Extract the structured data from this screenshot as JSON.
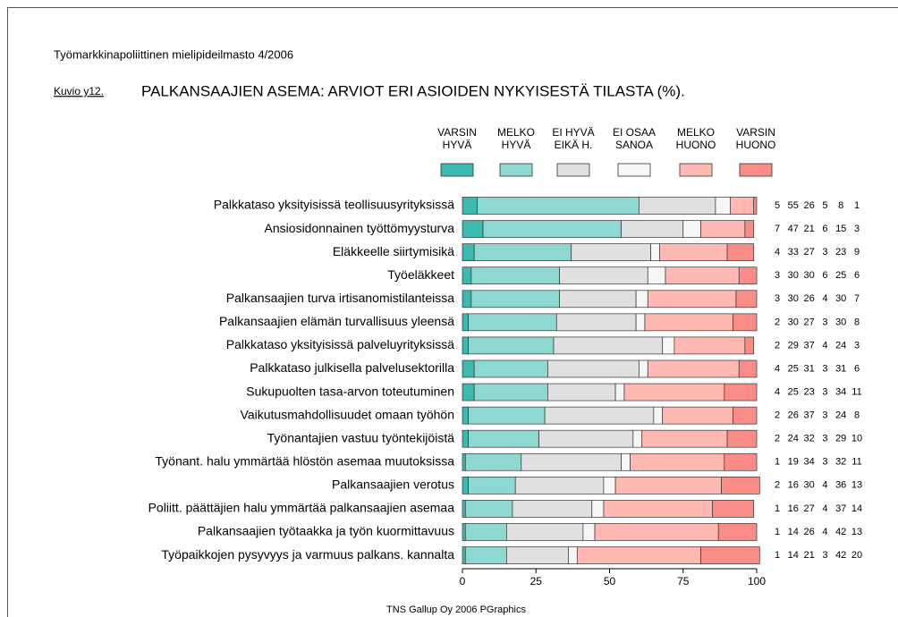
{
  "chart_data": {
    "type": "stacked_barh",
    "header": "Työmarkkinapoliittinen mielipideilmasto 4/2006",
    "figure_label": "Kuvio y12.",
    "title": "PALKANSAAJIEN ASEMA: ARVIOT ERI ASIOIDEN NYKYISESTÄ TILASTA (%).",
    "source": "TNS Gallup Oy  2006  PGraphics",
    "categories": [
      "Palkkataso yksityisissä teollisuusyrityksissä",
      "Ansiosidonnainen työttömyysturva",
      "Eläkkeelle siirtymisikä",
      "Työeläkkeet",
      "Palkansaajien turva irtisanomistilanteissa",
      "Palkansaajien elämän turvallisuus yleensä",
      "Palkkataso yksityisissä palveluyrityksissä",
      "Palkkataso julkisella palvelusektorilla",
      "Sukupuolten tasa-arvon toteutuminen",
      "Vaikutusmahdollisuudet omaan työhön",
      "Työnantajien vastuu työntekijöistä",
      "Työnant. halu ymmärtää hlöstön asemaa muutoksissa",
      "Palkansaajien verotus",
      "Poliitt. päättäjien halu ymmärtää palkansaajien asemaa",
      "Palkansaajien työtaakka ja työn kuormittavuus",
      "Työpaikkojen pysyvyys ja varmuus palkans. kannalta"
    ],
    "series": [
      {
        "name": "VARSIN\nHYVÄ",
        "color": "#3dbab0",
        "values": [
          5,
          7,
          4,
          3,
          3,
          2,
          2,
          4,
          4,
          2,
          2,
          1,
          2,
          1,
          1,
          1
        ]
      },
      {
        "name": "MELKO\nHYVÄ",
        "color": "#8ed8d2",
        "values": [
          55,
          47,
          33,
          30,
          30,
          30,
          29,
          25,
          25,
          26,
          24,
          19,
          16,
          16,
          14,
          14
        ]
      },
      {
        "name": "EI HYVÄ\nEIKÄ H.",
        "color": "#e0e0e0",
        "values": [
          26,
          21,
          27,
          30,
          26,
          27,
          37,
          31,
          23,
          37,
          32,
          34,
          30,
          27,
          26,
          21
        ]
      },
      {
        "name": "EI OSAA\nSANOA",
        "color": "#f6f6f6",
        "values": [
          5,
          6,
          3,
          6,
          4,
          3,
          4,
          3,
          3,
          3,
          3,
          3,
          4,
          4,
          4,
          3
        ]
      },
      {
        "name": "MELKO\nHUONO",
        "color": "#ffb9b2",
        "values": [
          8,
          15,
          23,
          25,
          30,
          30,
          24,
          31,
          34,
          24,
          29,
          32,
          36,
          37,
          42,
          42
        ]
      },
      {
        "name": "VARSIN\nHUONO",
        "color": "#f98c86",
        "values": [
          1,
          3,
          9,
          6,
          7,
          8,
          3,
          6,
          11,
          8,
          10,
          11,
          13,
          14,
          13,
          20
        ]
      }
    ],
    "xlim": [
      0,
      100
    ],
    "xticks": [
      0,
      25,
      50,
      75,
      100
    ]
  }
}
